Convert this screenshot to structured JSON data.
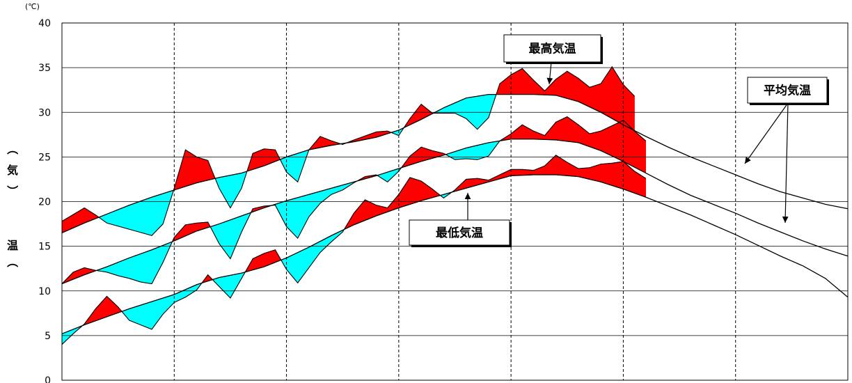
{
  "chart_data": {
    "type": "area",
    "unit_label": "(℃)",
    "ylabel": "（気温）",
    "ylabel_chars": [
      "（",
      "気",
      "）",
      "",
      "温",
      "（"
    ],
    "ylim": [
      0,
      40
    ],
    "yticks": [
      0,
      5,
      10,
      15,
      20,
      25,
      30,
      35,
      40
    ],
    "xlim": [
      0,
      70
    ],
    "x_gridlines": [
      10,
      20,
      30,
      40,
      50,
      60
    ],
    "colors": {
      "above_normal": "#ff0000",
      "below_normal": "#00ffff",
      "line": "#000000",
      "grid": "#000000"
    },
    "annotations": [
      {
        "text": "最高気温",
        "target": "max"
      },
      {
        "text": "最低気温",
        "target": "min"
      },
      {
        "text": "平均気温",
        "target": "normals"
      }
    ],
    "series": [
      {
        "key": "max_normal",
        "points": [
          [
            0,
            16.5
          ],
          [
            2,
            17.6
          ],
          [
            4,
            18.6
          ],
          [
            6,
            19.6
          ],
          [
            8,
            20.5
          ],
          [
            10,
            21.3
          ],
          [
            12,
            22.1
          ],
          [
            14,
            22.7
          ],
          [
            16,
            23.2
          ],
          [
            18,
            24.0
          ],
          [
            20,
            25.0
          ],
          [
            22,
            25.8
          ],
          [
            24,
            26.3
          ],
          [
            26,
            26.7
          ],
          [
            28,
            27.2
          ],
          [
            30,
            28.0
          ],
          [
            32,
            29.2
          ],
          [
            34,
            30.5
          ],
          [
            36,
            31.6
          ],
          [
            38,
            32.0
          ],
          [
            40,
            32.0
          ],
          [
            42,
            32.0
          ],
          [
            44,
            31.9
          ],
          [
            46,
            31.2
          ],
          [
            48,
            30.0
          ],
          [
            50,
            28.6
          ],
          [
            52,
            27.3
          ],
          [
            54,
            26.1
          ],
          [
            56,
            25.0
          ],
          [
            58,
            24.0
          ],
          [
            60,
            23.0
          ],
          [
            62,
            22.0
          ],
          [
            64,
            21.1
          ],
          [
            66,
            20.4
          ],
          [
            68,
            19.7
          ],
          [
            70,
            19.2
          ]
        ]
      },
      {
        "key": "max_actual",
        "start": 0,
        "end": 48,
        "points": [
          [
            0,
            17.8
          ],
          [
            2,
            19.3
          ],
          [
            3,
            18.5
          ],
          [
            4,
            17.6
          ],
          [
            6,
            16.9
          ],
          [
            8,
            16.2
          ],
          [
            9,
            17.5
          ],
          [
            10,
            21.5
          ],
          [
            11,
            25.8
          ],
          [
            12,
            25.0
          ],
          [
            13,
            24.6
          ],
          [
            14,
            21.5
          ],
          [
            15,
            19.3
          ],
          [
            16,
            21.5
          ],
          [
            17,
            25.4
          ],
          [
            18,
            25.9
          ],
          [
            19,
            25.8
          ],
          [
            20,
            23.3
          ],
          [
            21,
            22.2
          ],
          [
            22,
            25.8
          ],
          [
            23,
            27.3
          ],
          [
            24,
            26.8
          ],
          [
            25,
            26.4
          ],
          [
            26,
            26.9
          ],
          [
            28,
            27.8
          ],
          [
            29,
            27.9
          ],
          [
            30,
            27.4
          ],
          [
            31,
            29.3
          ],
          [
            32,
            30.9
          ],
          [
            33,
            29.9
          ],
          [
            34,
            29.9
          ],
          [
            35,
            29.9
          ],
          [
            36,
            29.3
          ],
          [
            37,
            28.1
          ],
          [
            38,
            29.4
          ],
          [
            39,
            33.2
          ],
          [
            40,
            34.2
          ],
          [
            41,
            34.9
          ],
          [
            42,
            33.6
          ],
          [
            43,
            32.4
          ],
          [
            44,
            33.7
          ],
          [
            45,
            34.6
          ],
          [
            46,
            33.8
          ],
          [
            47,
            32.8
          ],
          [
            48,
            33.2
          ],
          [
            49,
            35.1
          ],
          [
            50,
            33.1
          ],
          [
            51,
            31.8
          ]
        ]
      },
      {
        "key": "mean_normal",
        "points": [
          [
            0,
            10.8
          ],
          [
            2,
            11.8
          ],
          [
            4,
            12.7
          ],
          [
            6,
            13.7
          ],
          [
            8,
            14.6
          ],
          [
            10,
            15.6
          ],
          [
            12,
            16.7
          ],
          [
            14,
            17.5
          ],
          [
            16,
            18.4
          ],
          [
            18,
            19.3
          ],
          [
            20,
            20.1
          ],
          [
            22,
            20.8
          ],
          [
            24,
            21.5
          ],
          [
            26,
            22.2
          ],
          [
            28,
            22.9
          ],
          [
            30,
            23.7
          ],
          [
            32,
            24.5
          ],
          [
            34,
            25.2
          ],
          [
            36,
            26.0
          ],
          [
            38,
            26.6
          ],
          [
            40,
            27.0
          ],
          [
            42,
            27.0
          ],
          [
            44,
            26.9
          ],
          [
            46,
            26.6
          ],
          [
            48,
            25.7
          ],
          [
            50,
            24.5
          ],
          [
            52,
            23.2
          ],
          [
            54,
            21.9
          ],
          [
            56,
            20.7
          ],
          [
            58,
            19.7
          ],
          [
            60,
            18.7
          ],
          [
            62,
            17.6
          ],
          [
            64,
            16.6
          ],
          [
            66,
            15.6
          ],
          [
            68,
            14.7
          ],
          [
            70,
            13.9
          ]
        ]
      },
      {
        "key": "mean_actual",
        "points": [
          [
            0,
            10.8
          ],
          [
            1,
            12.1
          ],
          [
            2,
            12.6
          ],
          [
            3,
            12.3
          ],
          [
            4,
            12.1
          ],
          [
            5,
            11.7
          ],
          [
            6,
            11.4
          ],
          [
            7,
            11.0
          ],
          [
            8,
            10.8
          ],
          [
            9,
            13.2
          ],
          [
            10,
            16.0
          ],
          [
            11,
            17.4
          ],
          [
            12,
            17.6
          ],
          [
            13,
            17.7
          ],
          [
            14,
            15.3
          ],
          [
            15,
            13.6
          ],
          [
            16,
            16.6
          ],
          [
            17,
            19.2
          ],
          [
            18,
            19.5
          ],
          [
            19,
            19.6
          ],
          [
            20,
            17.2
          ],
          [
            21,
            15.9
          ],
          [
            22,
            18.3
          ],
          [
            23,
            19.8
          ],
          [
            24,
            20.8
          ],
          [
            25,
            21.3
          ],
          [
            26,
            22.1
          ],
          [
            27,
            22.8
          ],
          [
            28,
            23.0
          ],
          [
            29,
            22.2
          ],
          [
            30,
            23.4
          ],
          [
            31,
            25.1
          ],
          [
            32,
            26.1
          ],
          [
            33,
            25.7
          ],
          [
            34,
            25.4
          ],
          [
            35,
            24.7
          ],
          [
            36,
            24.8
          ],
          [
            37,
            24.7
          ],
          [
            38,
            25.1
          ],
          [
            39,
            26.8
          ],
          [
            40,
            27.6
          ],
          [
            41,
            28.6
          ],
          [
            42,
            27.9
          ],
          [
            43,
            27.4
          ],
          [
            44,
            28.9
          ],
          [
            45,
            29.5
          ],
          [
            46,
            28.6
          ],
          [
            47,
            27.6
          ],
          [
            48,
            27.9
          ],
          [
            49,
            28.5
          ],
          [
            50,
            29.1
          ],
          [
            51,
            27.9
          ],
          [
            52,
            26.8
          ]
        ]
      },
      {
        "key": "min_normal",
        "points": [
          [
            0,
            5.2
          ],
          [
            2,
            6.2
          ],
          [
            4,
            7.1
          ],
          [
            6,
            8.0
          ],
          [
            8,
            8.8
          ],
          [
            10,
            9.6
          ],
          [
            12,
            10.7
          ],
          [
            14,
            11.5
          ],
          [
            16,
            12.0
          ],
          [
            18,
            12.7
          ],
          [
            20,
            13.7
          ],
          [
            22,
            14.9
          ],
          [
            24,
            16.2
          ],
          [
            26,
            17.4
          ],
          [
            28,
            18.4
          ],
          [
            30,
            19.3
          ],
          [
            32,
            20.1
          ],
          [
            34,
            20.8
          ],
          [
            36,
            21.5
          ],
          [
            38,
            22.2
          ],
          [
            40,
            22.9
          ],
          [
            42,
            23.0
          ],
          [
            44,
            23.0
          ],
          [
            46,
            22.8
          ],
          [
            48,
            22.2
          ],
          [
            50,
            21.4
          ],
          [
            52,
            20.5
          ],
          [
            54,
            19.5
          ],
          [
            56,
            18.5
          ],
          [
            58,
            17.4
          ],
          [
            60,
            16.3
          ],
          [
            62,
            15.1
          ],
          [
            64,
            13.9
          ],
          [
            66,
            12.8
          ],
          [
            68,
            11.4
          ],
          [
            70,
            9.3
          ]
        ]
      },
      {
        "key": "min_actual",
        "points": [
          [
            0,
            4.0
          ],
          [
            1,
            5.2
          ],
          [
            2,
            6.3
          ],
          [
            3,
            8.0
          ],
          [
            4,
            9.4
          ],
          [
            5,
            8.2
          ],
          [
            6,
            6.7
          ],
          [
            7,
            6.2
          ],
          [
            8,
            5.7
          ],
          [
            9,
            7.4
          ],
          [
            10,
            8.7
          ],
          [
            11,
            9.3
          ],
          [
            12,
            10.1
          ],
          [
            13,
            11.8
          ],
          [
            14,
            10.5
          ],
          [
            15,
            9.2
          ],
          [
            16,
            11.4
          ],
          [
            17,
            13.6
          ],
          [
            18,
            14.2
          ],
          [
            19,
            14.6
          ],
          [
            20,
            12.4
          ],
          [
            21,
            10.9
          ],
          [
            22,
            12.6
          ],
          [
            23,
            14.3
          ],
          [
            24,
            15.5
          ],
          [
            25,
            16.6
          ],
          [
            26,
            18.7
          ],
          [
            27,
            20.2
          ],
          [
            28,
            19.6
          ],
          [
            29,
            19.3
          ],
          [
            30,
            20.8
          ],
          [
            31,
            22.7
          ],
          [
            32,
            22.3
          ],
          [
            33,
            21.4
          ],
          [
            34,
            20.4
          ],
          [
            35,
            21.3
          ],
          [
            36,
            22.5
          ],
          [
            37,
            22.6
          ],
          [
            38,
            22.4
          ],
          [
            39,
            23.0
          ],
          [
            40,
            23.6
          ],
          [
            41,
            23.6
          ],
          [
            42,
            23.5
          ],
          [
            43,
            24.0
          ],
          [
            44,
            25.2
          ],
          [
            45,
            24.4
          ],
          [
            46,
            23.7
          ],
          [
            47,
            23.8
          ],
          [
            48,
            24.2
          ],
          [
            49,
            24.3
          ],
          [
            50,
            24.5
          ],
          [
            51,
            23.4
          ],
          [
            52,
            22.6
          ]
        ]
      }
    ]
  }
}
